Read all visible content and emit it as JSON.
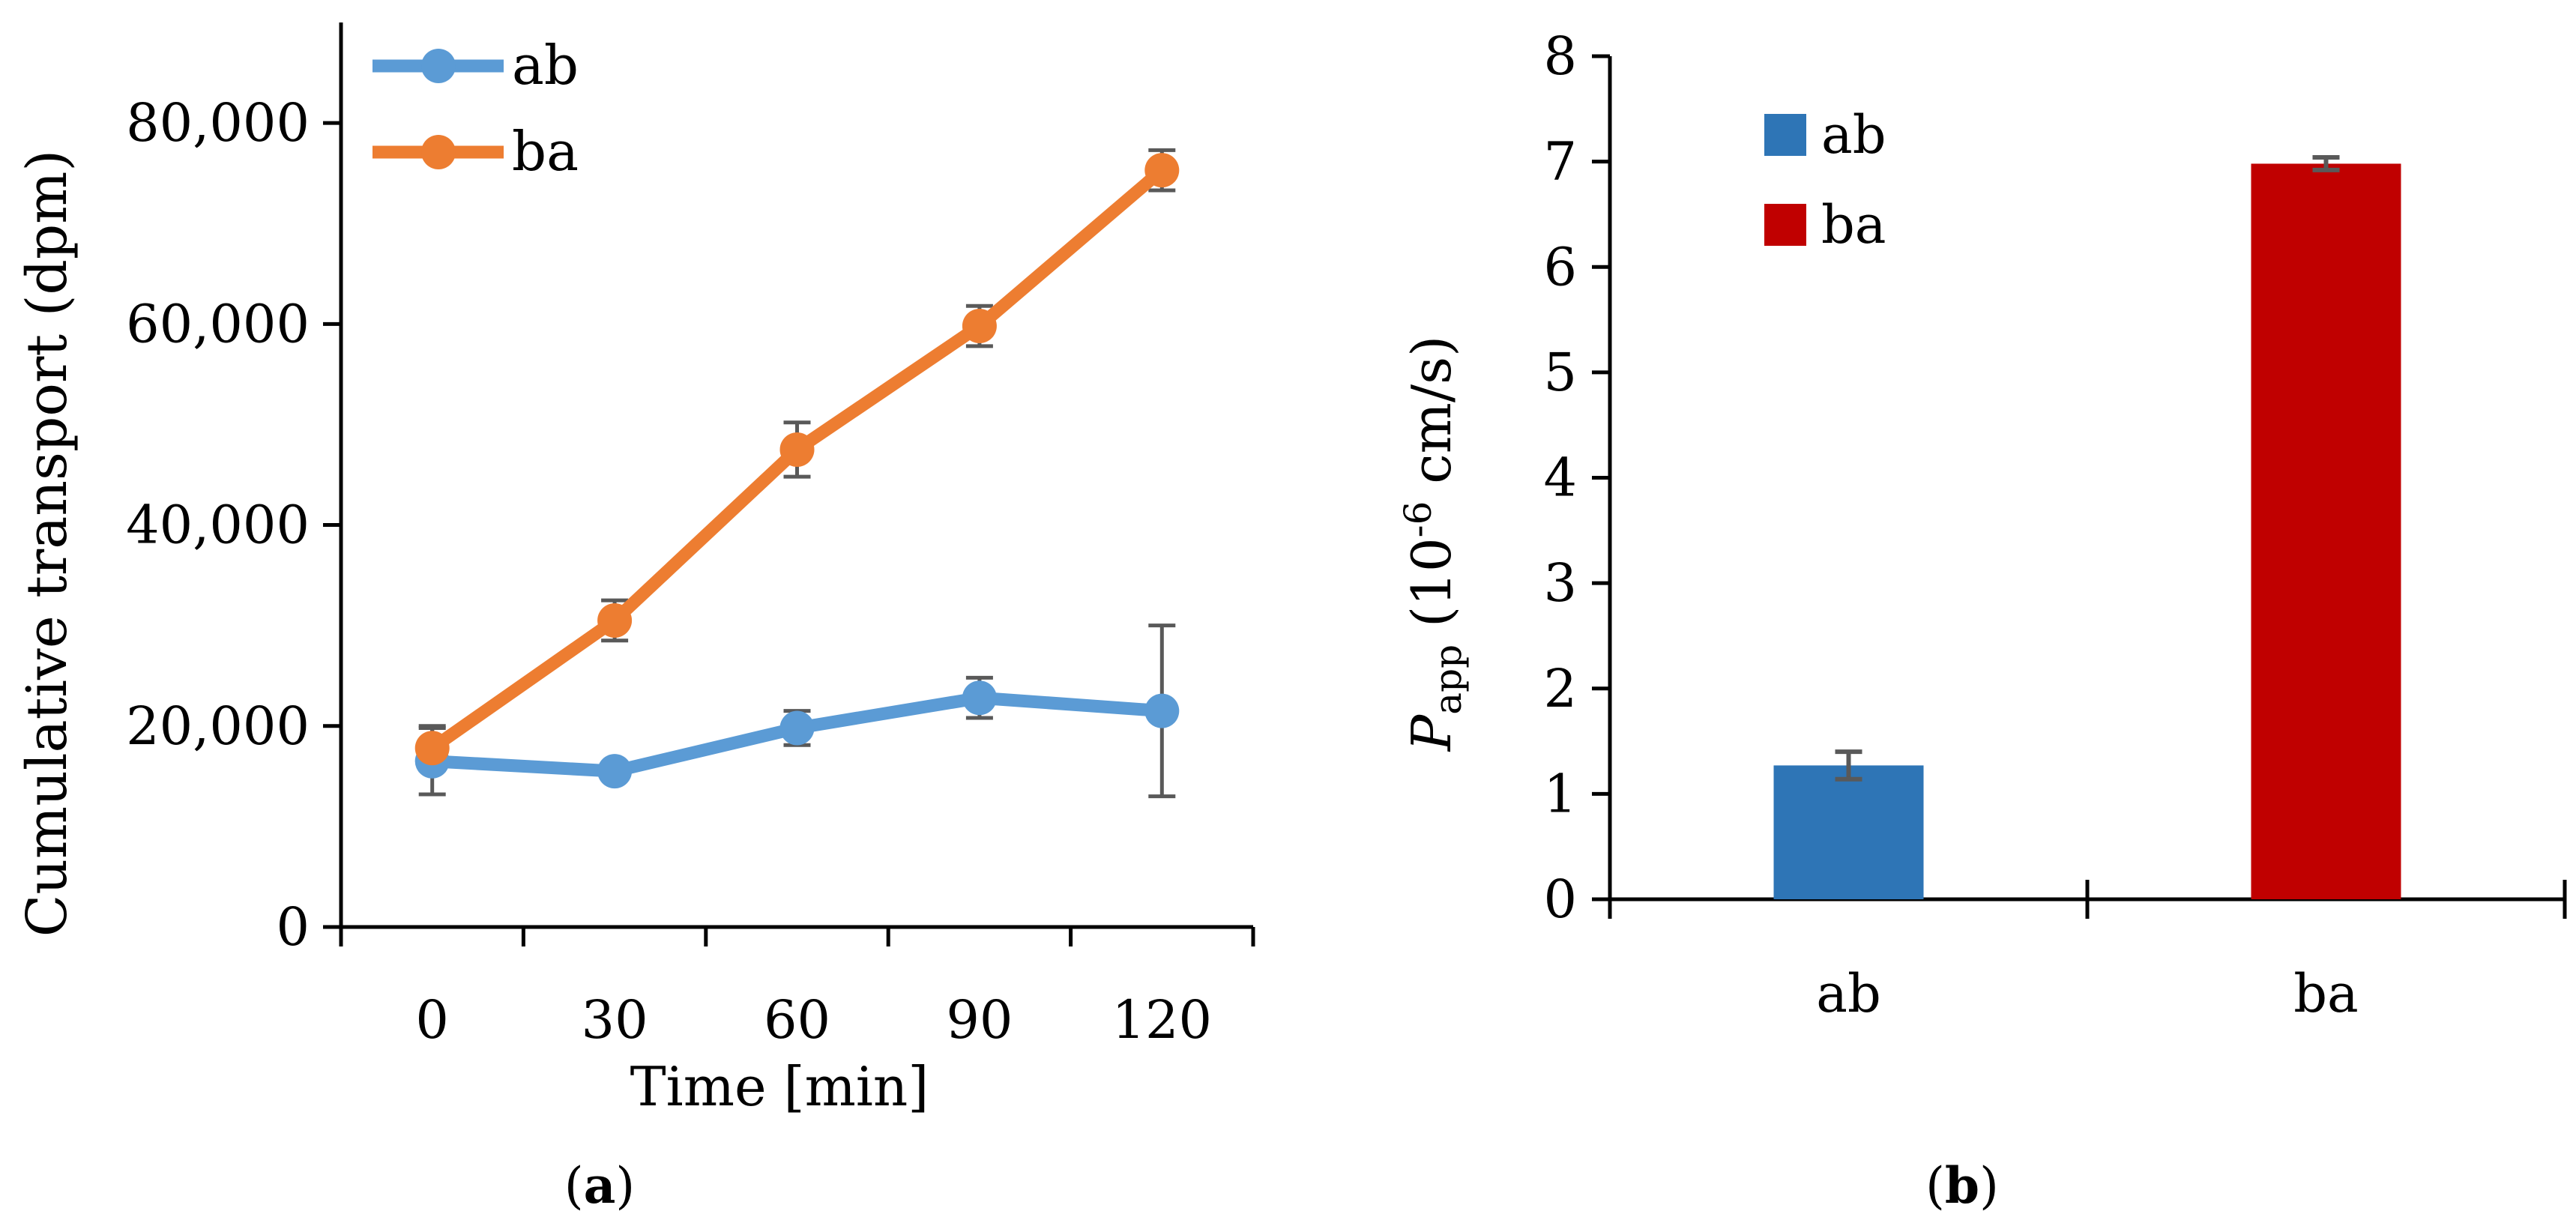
{
  "chart_data": [
    {
      "type": "line",
      "panel_label": "a",
      "xlabel": "Time [min]",
      "ylabel": "Cumulative transport (dpm)",
      "categories": [
        "0",
        "30",
        "60",
        "90",
        "120"
      ],
      "ylim": [
        0,
        90000
      ],
      "yticks": [
        0,
        20000,
        40000,
        60000,
        80000
      ],
      "ytick_labels": [
        "0",
        "20,000",
        "40,000",
        "60,000",
        "80,000"
      ],
      "legend_position": "top-left",
      "series": [
        {
          "name": "ab",
          "color": "#5B9BD5",
          "values": [
            16500,
            15500,
            19800,
            22800,
            21500
          ],
          "errors": [
            3300,
            700,
            1700,
            2000,
            8500
          ]
        },
        {
          "name": "ba",
          "color": "#ED7D31",
          "values": [
            17800,
            30500,
            47500,
            59800,
            75300
          ],
          "errors": [
            2200,
            2000,
            2700,
            2000,
            2000
          ]
        }
      ]
    },
    {
      "type": "bar",
      "panel_label": "b",
      "ylabel_main": "P",
      "ylabel_sub": "app",
      "ylabel_open": " (10",
      "ylabel_sup": "-6",
      "ylabel_rest": " cm/s)",
      "categories": [
        "ab",
        "ba"
      ],
      "values": [
        1.27,
        6.98
      ],
      "errors": [
        0.13,
        0.06
      ],
      "colors": [
        "#2E75B6",
        "#C00000"
      ],
      "ylim": [
        0,
        8
      ],
      "yticks": [
        0,
        1,
        2,
        3,
        4,
        5,
        6,
        7,
        8
      ],
      "legend_position": "top-left",
      "legend": [
        {
          "name": "ab",
          "color": "#2E75B6"
        },
        {
          "name": "ba",
          "color": "#C00000"
        }
      ]
    }
  ]
}
